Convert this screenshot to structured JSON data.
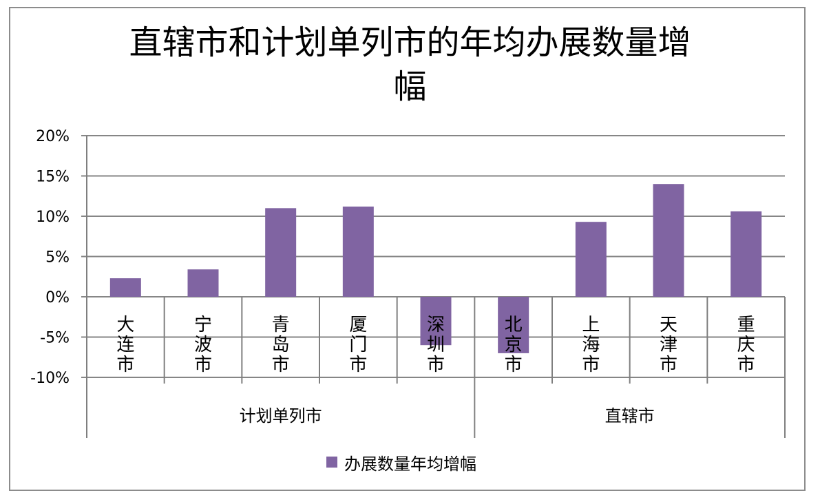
{
  "chart_data": {
    "type": "bar",
    "title_lines": [
      "直辖市和计划单列市的年均办展数量增",
      "幅"
    ],
    "categories": [
      {
        "label": [
          "大",
          "连",
          "市"
        ],
        "group": 0
      },
      {
        "label": [
          "宁",
          "波",
          "市"
        ],
        "group": 0
      },
      {
        "label": [
          "青",
          "岛",
          "市"
        ],
        "group": 0
      },
      {
        "label": [
          "厦",
          "门",
          "市"
        ],
        "group": 0
      },
      {
        "label": [
          "深",
          "圳",
          "市"
        ],
        "group": 0
      },
      {
        "label": [
          "北",
          "京",
          "市"
        ],
        "group": 1
      },
      {
        "label": [
          "上",
          "海",
          "市"
        ],
        "group": 1
      },
      {
        "label": [
          "天",
          "津",
          "市"
        ],
        "group": 1
      },
      {
        "label": [
          "重",
          "庆",
          "市"
        ],
        "group": 1
      }
    ],
    "groups": [
      "计划单列市",
      "直辖市"
    ],
    "series": [
      {
        "name": "办展数量年均增幅",
        "values": [
          2.3,
          3.4,
          11.0,
          11.2,
          -6.0,
          -7.0,
          9.3,
          14.0,
          10.6
        ]
      }
    ],
    "y_ticks": [
      "20%",
      "15%",
      "10%",
      "5%",
      "0%",
      "-5%",
      "-10%"
    ],
    "ylim": [
      -10,
      20
    ],
    "grid": true,
    "legend_position": "bottom",
    "colors": {
      "bar": "#8064a2",
      "grid": "#868686",
      "axis": "#7f7f7f"
    }
  }
}
